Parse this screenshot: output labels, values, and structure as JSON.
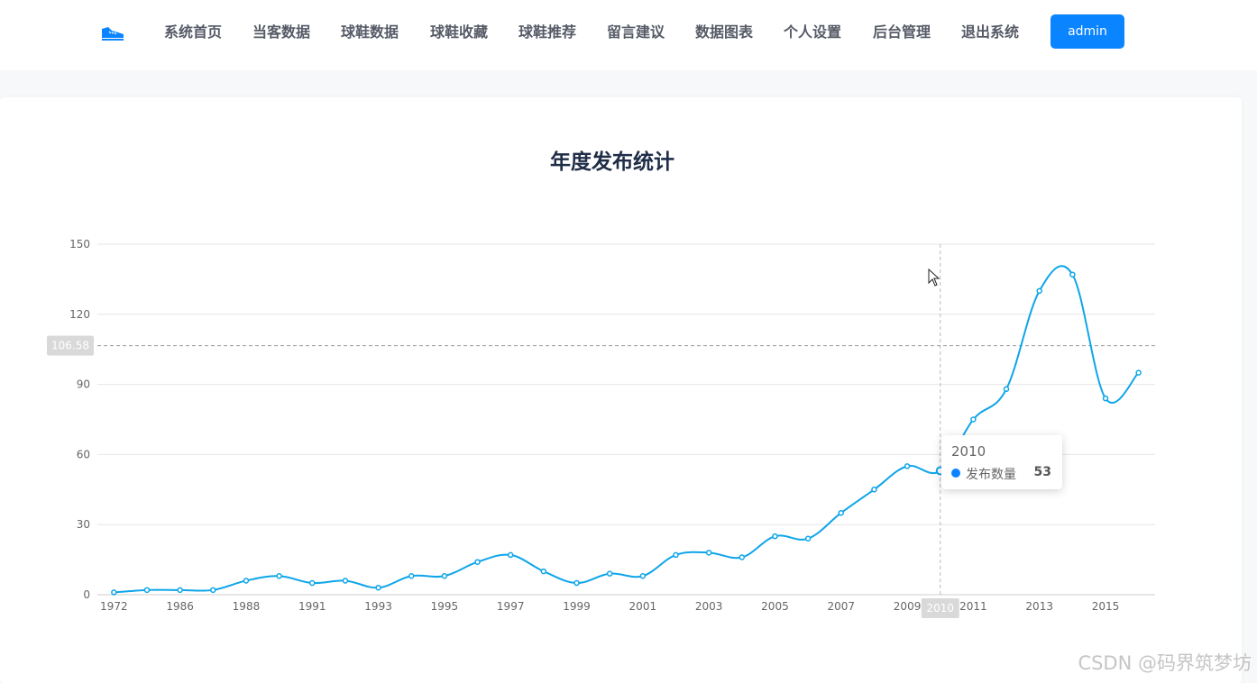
{
  "nav": {
    "items": [
      "系统首页",
      "当客数据",
      "球鞋数据",
      "球鞋收藏",
      "球鞋推荐",
      "留言建议",
      "数据图表",
      "个人设置",
      "后台管理",
      "退出系统"
    ],
    "user_button": "admin"
  },
  "colors": {
    "accent": "#0a84ff",
    "series": "#0ea5e9",
    "axis_text": "#666666",
    "grid": "#e6e6e6"
  },
  "icons": {
    "logo": "sneaker-icon",
    "cursor": "mouse-pointer-icon"
  },
  "chart_data": {
    "type": "line",
    "title": "年度发布统计",
    "xlabel": "",
    "ylabel": "",
    "ylim": [
      0,
      150
    ],
    "y_ticks": [
      "0",
      "30",
      "60",
      "90",
      "120",
      "150"
    ],
    "x": [
      "1972",
      "1985",
      "1986",
      "1987",
      "1988",
      "1990",
      "1991",
      "1992",
      "1993",
      "1994",
      "1995",
      "1996",
      "1997",
      "1998",
      "1999",
      "2000",
      "2001",
      "2002",
      "2003",
      "2004",
      "2005",
      "2006",
      "2007",
      "2008",
      "2009",
      "2010",
      "2011",
      "2012",
      "2013",
      "2014",
      "2015",
      "2016"
    ],
    "x_tick_labels": [
      "1972",
      "1986",
      "1988",
      "1991",
      "1993",
      "1995",
      "1997",
      "1999",
      "2001",
      "2003",
      "2005",
      "2007",
      "2009",
      "2011",
      "2013",
      "2015"
    ],
    "series": [
      {
        "name": "发布数量",
        "values": [
          1,
          2,
          2,
          2,
          6,
          8,
          5,
          6,
          3,
          8,
          8,
          14,
          17,
          10,
          5,
          9,
          8,
          17,
          18,
          16,
          25,
          24,
          35,
          45,
          55,
          53,
          75,
          88,
          130,
          137,
          84,
          95
        ]
      }
    ],
    "grid": true,
    "smooth": true,
    "hover": {
      "category": "2010",
      "y_pointer_value": "106.58",
      "tooltip_title": "2010",
      "tooltip_series": "发布数量",
      "tooltip_value": "53"
    }
  },
  "watermark": "CSDN @码界筑梦坊"
}
